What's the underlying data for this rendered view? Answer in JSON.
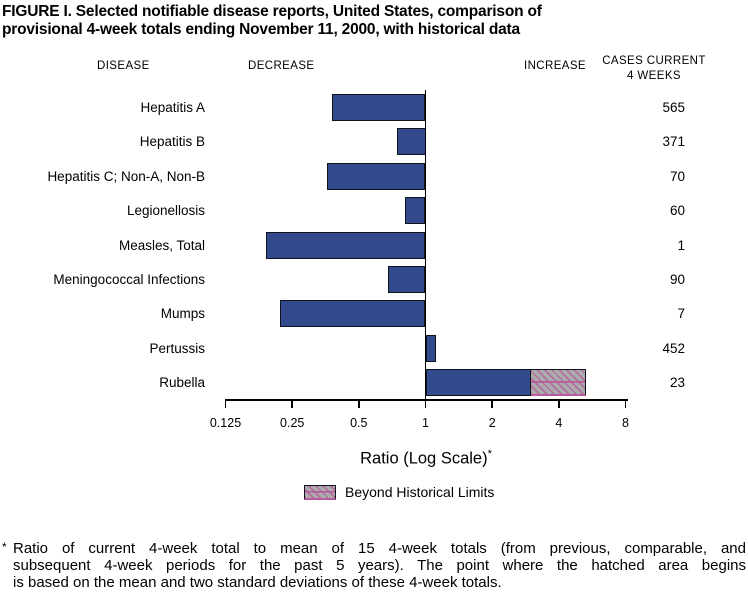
{
  "title": {
    "line1": "FIGURE I. Selected notifiable disease reports, United States, comparison of",
    "line2": "provisional 4-week totals ending November 11, 2000, with historical data"
  },
  "column_headers": {
    "disease": "DISEASE",
    "decrease": "DECREASE",
    "increase": "INCREASE",
    "cases_line1": "CASES CURRENT",
    "cases_line2": "4 WEEKS"
  },
  "chart_data": {
    "type": "bar",
    "orientation": "horizontal",
    "scale": "log2",
    "axis": {
      "label": "Ratio (Log Scale)",
      "label_superscript": "*",
      "ticks": [
        0.125,
        0.25,
        0.5,
        1,
        2,
        4,
        8
      ],
      "tick_labels": [
        "0.125",
        "0.25",
        "0.5",
        "1",
        "2",
        "4",
        "8"
      ],
      "baseline": 1,
      "range": [
        0.125,
        8
      ]
    },
    "rows": [
      {
        "disease": "Hepatitis A",
        "ratio": 0.38,
        "cases": "565"
      },
      {
        "disease": "Hepatitis B",
        "ratio": 0.74,
        "cases": "371"
      },
      {
        "disease": "Hepatitis C; Non-A, Non-B",
        "ratio": 0.36,
        "cases": "70"
      },
      {
        "disease": "Legionellosis",
        "ratio": 0.81,
        "cases": "60"
      },
      {
        "disease": "Measles, Total",
        "ratio": 0.19,
        "cases": "1"
      },
      {
        "disease": "Meningococcal Infections",
        "ratio": 0.68,
        "cases": "90"
      },
      {
        "disease": "Mumps",
        "ratio": 0.22,
        "cases": "7"
      },
      {
        "disease": "Pertussis",
        "ratio": 1.11,
        "cases": "452"
      },
      {
        "disease": "Rubella",
        "ratio": 3.0,
        "beyond_ratio": 5.3,
        "cases": "23"
      }
    ],
    "legend": {
      "label": "Beyond Historical Limits",
      "swatch": "hatched-beyond-limits"
    }
  },
  "colors": {
    "bar_fill": "#334a8c",
    "bar_border": "#10141f",
    "hatch_background": "#ababab",
    "hatch_line": "#b85a9e",
    "axis": "#000000",
    "text": "#000000"
  },
  "footnote": {
    "marker": "*",
    "text": "Ratio of current 4-week total to mean of 15 4-week totals (from previous, comparable, and subsequent 4-week periods for the past 5 years). The point where the hatched area begins is based on the mean and two standard deviations of these 4-week totals.",
    "lines": [
      "Ratio of current 4-week total to mean of 15 4-week totals (from previous, comparable, and",
      "subsequent 4-week periods for the past 5 years). The point where the hatched area begins",
      "is based on the mean and two standard deviations of these 4-week totals."
    ]
  }
}
